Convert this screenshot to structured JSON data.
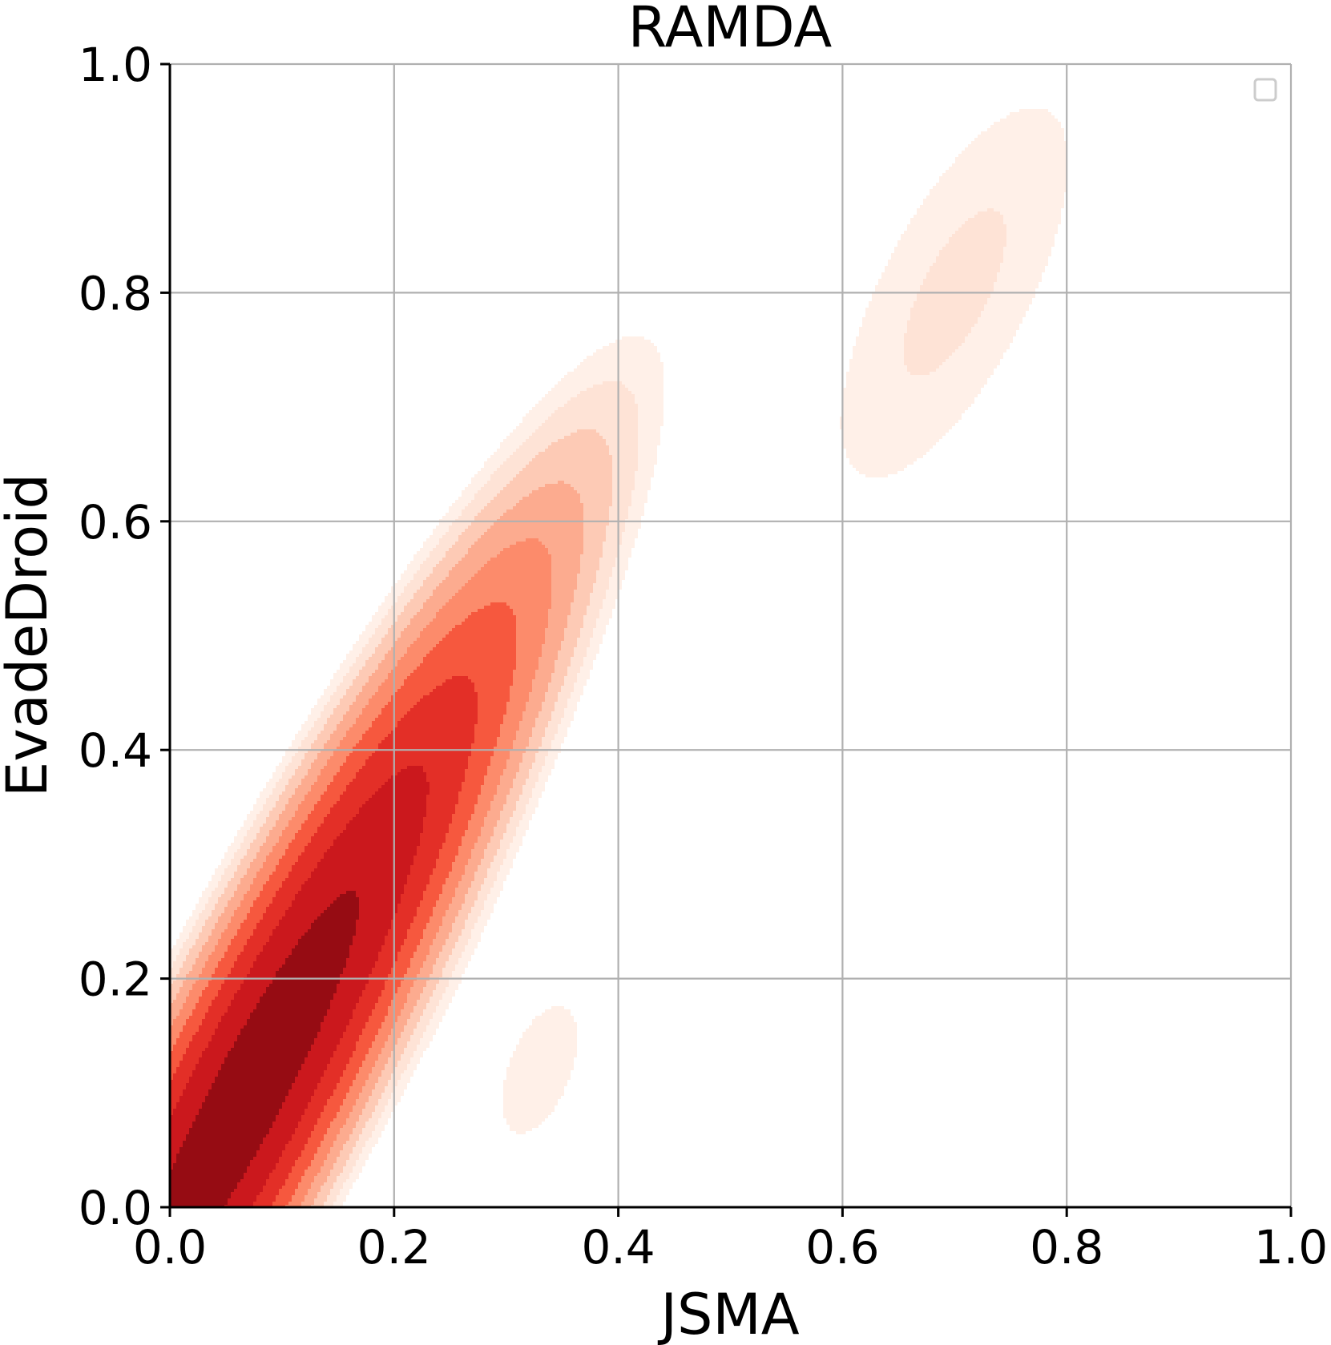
{
  "chart_data": {
    "type": "kde-contour",
    "title": "RAMDA",
    "xlabel": "JSMA",
    "ylabel": "EvadeDroid",
    "xlim": [
      0.0,
      1.0
    ],
    "ylim": [
      0.0,
      1.0
    ],
    "xticks": [
      0.0,
      0.2,
      0.4,
      0.6,
      0.8,
      1.0
    ],
    "yticks": [
      0.0,
      0.2,
      0.4,
      0.6,
      0.8,
      1.0
    ],
    "xtick_labels": [
      "0.0",
      "0.2",
      "0.4",
      "0.6",
      "0.8",
      "1.0"
    ],
    "ytick_labels": [
      "0.0",
      "0.2",
      "0.4",
      "0.6",
      "0.8",
      "1.0"
    ],
    "grid": true,
    "legend": {
      "placement": "top-right",
      "entries": []
    },
    "colormap": "Reds",
    "level_colors": [
      "#fff0e8",
      "#fee3d6",
      "#fdcab5",
      "#fcab8f",
      "#fc8b6b",
      "#f6583e",
      "#e32f27",
      "#cb181d",
      "#960c13"
    ],
    "density_components": [
      {
        "mean": [
          0.07,
          0.1
        ],
        "sd": [
          0.14,
          0.25
        ],
        "corr": 0.93,
        "weight": 1.0
      },
      {
        "mean": [
          0.7,
          0.8
        ],
        "sd": [
          0.1,
          0.16
        ],
        "corr": 0.7,
        "weight": 0.05
      },
      {
        "mean": [
          0.33,
          0.12
        ],
        "sd": [
          0.06,
          0.1
        ],
        "corr": 0.5,
        "weight": 0.035
      }
    ]
  }
}
